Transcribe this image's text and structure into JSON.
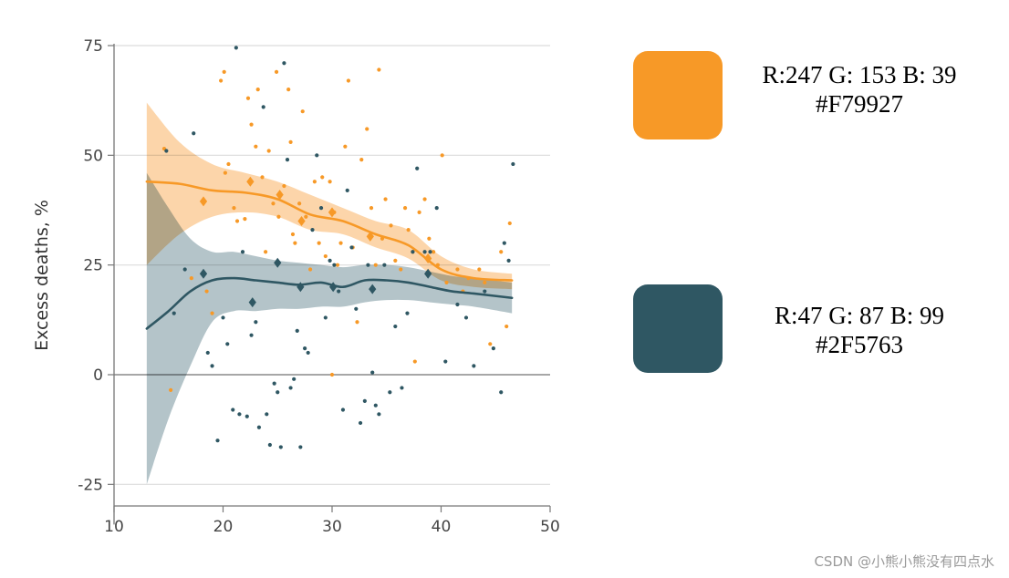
{
  "chart_data": {
    "type": "scatter",
    "ylabel": "Excess deaths, %",
    "xlim": [
      10,
      50
    ],
    "ylim": [
      -30,
      75
    ],
    "xticks": [
      10,
      20,
      30,
      40,
      50
    ],
    "yticks": [
      -25,
      0,
      25,
      50,
      75
    ],
    "grid": true,
    "series": [
      {
        "color": "#F79927",
        "band_color": "#FBCB95",
        "trend": [
          [
            13,
            44
          ],
          [
            16,
            43.5
          ],
          [
            19,
            42
          ],
          [
            22,
            41.5
          ],
          [
            25,
            40
          ],
          [
            28,
            36.5
          ],
          [
            31,
            35
          ],
          [
            34,
            32
          ],
          [
            37,
            29.5
          ],
          [
            40,
            24
          ],
          [
            43,
            22
          ],
          [
            46.5,
            21.5
          ]
        ],
        "band_upper": [
          [
            13,
            62
          ],
          [
            16,
            53
          ],
          [
            19,
            48
          ],
          [
            22,
            46
          ],
          [
            25,
            44
          ],
          [
            28,
            41
          ],
          [
            31,
            38
          ],
          [
            34,
            35
          ],
          [
            37,
            33
          ],
          [
            40,
            27
          ],
          [
            43,
            24
          ],
          [
            46.5,
            23
          ]
        ],
        "band_lower": [
          [
            13,
            25
          ],
          [
            16,
            32
          ],
          [
            19,
            36
          ],
          [
            22,
            37
          ],
          [
            25,
            36
          ],
          [
            28,
            33
          ],
          [
            31,
            32
          ],
          [
            34,
            29
          ],
          [
            37,
            26.5
          ],
          [
            40,
            21.5
          ],
          [
            43,
            20
          ],
          [
            46.5,
            19.5
          ]
        ],
        "diamonds": [
          [
            18.2,
            39.5
          ],
          [
            22.5,
            44
          ],
          [
            25.2,
            41
          ],
          [
            27.2,
            35
          ],
          [
            30,
            37
          ],
          [
            33.5,
            31.5
          ],
          [
            38.8,
            26.5
          ]
        ],
        "points": [
          [
            14.6,
            51.5
          ],
          [
            15.2,
            -3.5
          ],
          [
            17.1,
            22
          ],
          [
            18.5,
            19
          ],
          [
            19,
            14
          ],
          [
            19.8,
            67
          ],
          [
            20.1,
            69
          ],
          [
            20.2,
            46
          ],
          [
            20.5,
            48
          ],
          [
            21,
            38
          ],
          [
            21.3,
            35
          ],
          [
            22,
            35.5
          ],
          [
            22.3,
            63
          ],
          [
            22.6,
            57
          ],
          [
            23,
            52
          ],
          [
            23.2,
            65
          ],
          [
            23.6,
            45
          ],
          [
            23.9,
            28
          ],
          [
            24.2,
            51
          ],
          [
            24.6,
            39
          ],
          [
            24.9,
            69
          ],
          [
            25.1,
            36
          ],
          [
            25.6,
            43
          ],
          [
            26,
            65
          ],
          [
            26.2,
            53
          ],
          [
            26.4,
            32
          ],
          [
            26.6,
            30
          ],
          [
            27,
            39
          ],
          [
            27.3,
            60
          ],
          [
            27.6,
            36
          ],
          [
            28,
            24
          ],
          [
            28.4,
            44
          ],
          [
            28.8,
            30
          ],
          [
            29.1,
            45
          ],
          [
            29.4,
            27
          ],
          [
            29.8,
            44
          ],
          [
            30,
            0
          ],
          [
            30.2,
            37
          ],
          [
            30.5,
            25
          ],
          [
            30.8,
            30
          ],
          [
            31.2,
            52
          ],
          [
            31.5,
            67
          ],
          [
            31.9,
            29
          ],
          [
            32.3,
            12
          ],
          [
            32.7,
            49
          ],
          [
            33.2,
            56
          ],
          [
            33.6,
            38
          ],
          [
            34,
            25
          ],
          [
            34.3,
            69.5
          ],
          [
            34.6,
            31
          ],
          [
            34.9,
            40
          ],
          [
            35.4,
            34
          ],
          [
            35.8,
            26
          ],
          [
            36.3,
            24
          ],
          [
            36.7,
            38
          ],
          [
            37,
            33
          ],
          [
            37.4,
            28
          ],
          [
            37.6,
            3
          ],
          [
            38,
            37
          ],
          [
            38.5,
            40
          ],
          [
            38.9,
            31
          ],
          [
            39.3,
            28
          ],
          [
            39.7,
            25
          ],
          [
            40.1,
            50
          ],
          [
            40.5,
            21
          ],
          [
            41.5,
            24
          ],
          [
            42.5,
            22
          ],
          [
            43.5,
            24
          ],
          [
            44.5,
            7
          ],
          [
            45.5,
            28
          ],
          [
            46,
            11
          ],
          [
            46.3,
            34.5
          ],
          [
            44,
            21
          ],
          [
            42,
            19
          ]
        ]
      },
      {
        "color": "#2F5763",
        "band_color": "#A7BAC0",
        "trend": [
          [
            13,
            10.5
          ],
          [
            15,
            14.5
          ],
          [
            17,
            19
          ],
          [
            19,
            21.5
          ],
          [
            21,
            22
          ],
          [
            23,
            21.5
          ],
          [
            25,
            21
          ],
          [
            27,
            20.5
          ],
          [
            29,
            21
          ],
          [
            31,
            20
          ],
          [
            33,
            21.5
          ],
          [
            35,
            21.5
          ],
          [
            37,
            21
          ],
          [
            39,
            20
          ],
          [
            41,
            19
          ],
          [
            43,
            18.5
          ],
          [
            46.5,
            17.5
          ]
        ],
        "band_upper": [
          [
            13,
            46
          ],
          [
            15,
            38
          ],
          [
            17,
            31
          ],
          [
            19,
            28
          ],
          [
            21,
            28
          ],
          [
            23,
            27
          ],
          [
            25,
            26
          ],
          [
            27,
            25.5
          ],
          [
            29,
            25
          ],
          [
            31,
            24.5
          ],
          [
            33,
            25
          ],
          [
            35,
            25
          ],
          [
            37,
            24.5
          ],
          [
            39,
            23.5
          ],
          [
            41,
            22.5
          ],
          [
            43,
            22
          ],
          [
            46.5,
            21
          ]
        ],
        "band_lower": [
          [
            13,
            -25
          ],
          [
            15,
            -10
          ],
          [
            17,
            2
          ],
          [
            19,
            12
          ],
          [
            21,
            14.5
          ],
          [
            23,
            14.5
          ],
          [
            25,
            15
          ],
          [
            27,
            15
          ],
          [
            29,
            15.5
          ],
          [
            31,
            15.5
          ],
          [
            33,
            16.5
          ],
          [
            35,
            17
          ],
          [
            37,
            17
          ],
          [
            39,
            16.5
          ],
          [
            41,
            16
          ],
          [
            43,
            15.5
          ],
          [
            46.5,
            14
          ]
        ],
        "diamonds": [
          [
            18.2,
            23
          ],
          [
            22.7,
            16.5
          ],
          [
            25,
            25.5
          ],
          [
            27.1,
            20
          ],
          [
            30.1,
            20
          ],
          [
            33.7,
            19.5
          ],
          [
            38.8,
            23
          ]
        ],
        "points": [
          [
            14.8,
            51
          ],
          [
            15.5,
            14
          ],
          [
            16.5,
            24
          ],
          [
            17.3,
            55
          ],
          [
            18.6,
            5
          ],
          [
            19,
            2
          ],
          [
            19.5,
            -15
          ],
          [
            20,
            13
          ],
          [
            20.4,
            7
          ],
          [
            20.9,
            -8
          ],
          [
            21.2,
            74.5
          ],
          [
            21.5,
            -9
          ],
          [
            21.8,
            28
          ],
          [
            22.2,
            -9.5
          ],
          [
            22.6,
            9
          ],
          [
            23,
            12
          ],
          [
            23.3,
            -12
          ],
          [
            23.7,
            61
          ],
          [
            24,
            -9
          ],
          [
            24.3,
            -16
          ],
          [
            24.7,
            -2
          ],
          [
            25,
            -4
          ],
          [
            25.3,
            -16.5
          ],
          [
            25.6,
            71
          ],
          [
            25.9,
            49
          ],
          [
            26.2,
            -3
          ],
          [
            26.5,
            -1
          ],
          [
            26.8,
            10
          ],
          [
            27.1,
            -16.5
          ],
          [
            27.5,
            6
          ],
          [
            27.8,
            5
          ],
          [
            28.2,
            33
          ],
          [
            28.6,
            50
          ],
          [
            29,
            38
          ],
          [
            29.4,
            13
          ],
          [
            29.8,
            26
          ],
          [
            30.2,
            25
          ],
          [
            30.6,
            19
          ],
          [
            31,
            -8
          ],
          [
            31.4,
            42
          ],
          [
            31.8,
            29
          ],
          [
            32.2,
            15
          ],
          [
            32.6,
            -11
          ],
          [
            33,
            -6
          ],
          [
            33.3,
            25
          ],
          [
            33.7,
            0.5
          ],
          [
            34,
            -7
          ],
          [
            34.3,
            -9
          ],
          [
            34.8,
            25
          ],
          [
            35.3,
            -4
          ],
          [
            35.8,
            11
          ],
          [
            36.4,
            -3
          ],
          [
            36.9,
            14
          ],
          [
            37.4,
            28
          ],
          [
            37.8,
            47
          ],
          [
            38.5,
            28
          ],
          [
            39,
            28
          ],
          [
            39.6,
            38
          ],
          [
            40.4,
            3
          ],
          [
            41.5,
            16
          ],
          [
            42.3,
            13
          ],
          [
            43,
            2
          ],
          [
            44,
            19
          ],
          [
            44.8,
            6
          ],
          [
            45.5,
            -4
          ],
          [
            45.8,
            30
          ],
          [
            46.2,
            26
          ],
          [
            46.6,
            48
          ]
        ]
      }
    ]
  },
  "legend_cards": [
    {
      "color": "#F79927",
      "rgb_text": "R:247 G: 153 B: 39",
      "hex_text": "#F79927"
    },
    {
      "color": "#2F5763",
      "rgb_text": "R:47 G: 87 B: 99",
      "hex_text": "#2F5763"
    }
  ],
  "watermark": "CSDN @小熊小熊没有四点水"
}
